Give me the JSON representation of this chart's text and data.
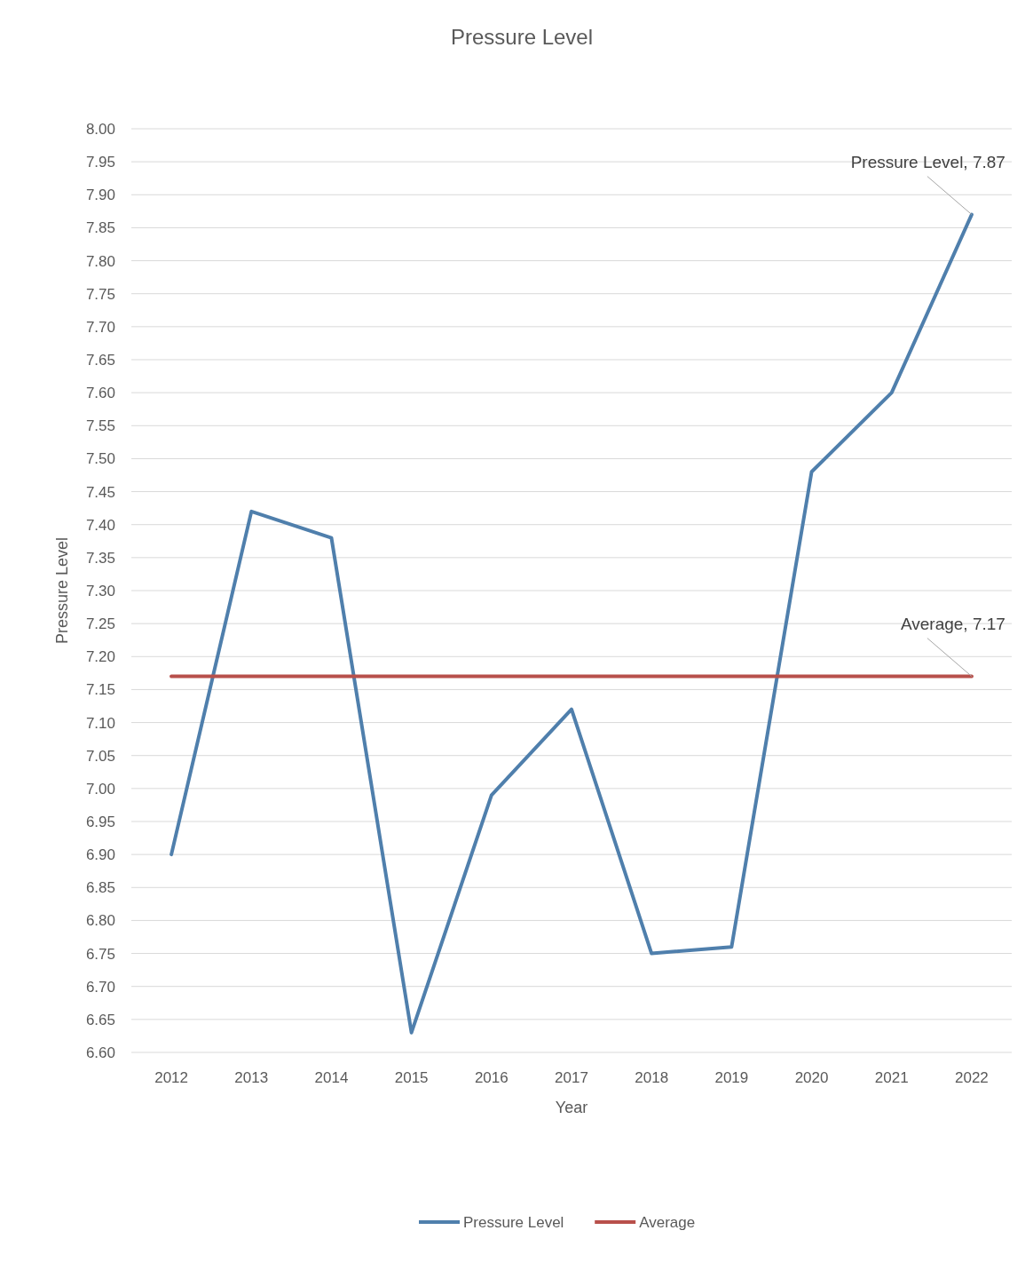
{
  "chart_data": {
    "type": "line",
    "title": "Pressure Level",
    "xlabel": "Year",
    "ylabel": "Pressure Level",
    "categories": [
      "2012",
      "2013",
      "2014",
      "2015",
      "2016",
      "2017",
      "2018",
      "2019",
      "2020",
      "2021",
      "2022"
    ],
    "series": [
      {
        "name": "Pressure Level",
        "color": "#4f7fac",
        "values": [
          6.9,
          7.42,
          7.38,
          6.63,
          6.99,
          7.12,
          6.75,
          6.76,
          7.48,
          7.6,
          7.87
        ]
      },
      {
        "name": "Average",
        "color": "#b8504b",
        "values": [
          7.17,
          7.17,
          7.17,
          7.17,
          7.17,
          7.17,
          7.17,
          7.17,
          7.17,
          7.17,
          7.17
        ]
      }
    ],
    "ylim": [
      6.6,
      8.0
    ],
    "yticks": [
      {
        "value": 6.6,
        "label": "6.60"
      },
      {
        "value": 6.65,
        "label": "6.65"
      },
      {
        "value": 6.7,
        "label": "6.70"
      },
      {
        "value": 6.75,
        "label": "6.75"
      },
      {
        "value": 6.8,
        "label": "6.80"
      },
      {
        "value": 6.85,
        "label": "6.85"
      },
      {
        "value": 6.9,
        "label": "6.90"
      },
      {
        "value": 6.95,
        "label": "6.95"
      },
      {
        "value": 7.0,
        "label": "7.00"
      },
      {
        "value": 7.05,
        "label": "7.05"
      },
      {
        "value": 7.1,
        "label": "7.10"
      },
      {
        "value": 7.15,
        "label": "7.15"
      },
      {
        "value": 7.2,
        "label": "7.20"
      },
      {
        "value": 7.25,
        "label": "7.25"
      },
      {
        "value": 7.3,
        "label": "7.30"
      },
      {
        "value": 7.35,
        "label": "7.35"
      },
      {
        "value": 7.4,
        "label": "7.40"
      },
      {
        "value": 7.45,
        "label": "7.45"
      },
      {
        "value": 7.5,
        "label": "7.50"
      },
      {
        "value": 7.55,
        "label": "7.55"
      },
      {
        "value": 7.6,
        "label": "7.60"
      },
      {
        "value": 7.65,
        "label": "7.65"
      },
      {
        "value": 7.7,
        "label": "7.70"
      },
      {
        "value": 7.75,
        "label": "7.75"
      },
      {
        "value": 7.8,
        "label": "7.80"
      },
      {
        "value": 7.85,
        "label": "7.85"
      },
      {
        "value": 7.9,
        "label": "7.90"
      },
      {
        "value": 7.95,
        "label": "7.95"
      },
      {
        "value": 8.0,
        "label": "8.00"
      }
    ],
    "grid": "y",
    "legend": "bottom",
    "marker": "none",
    "line_style": "solid",
    "annotations": [
      {
        "text": "Pressure Level, 7.87",
        "x": "2022",
        "y": 7.87
      },
      {
        "text": "Average, 7.17",
        "x": "2022",
        "y": 7.17
      }
    ]
  }
}
